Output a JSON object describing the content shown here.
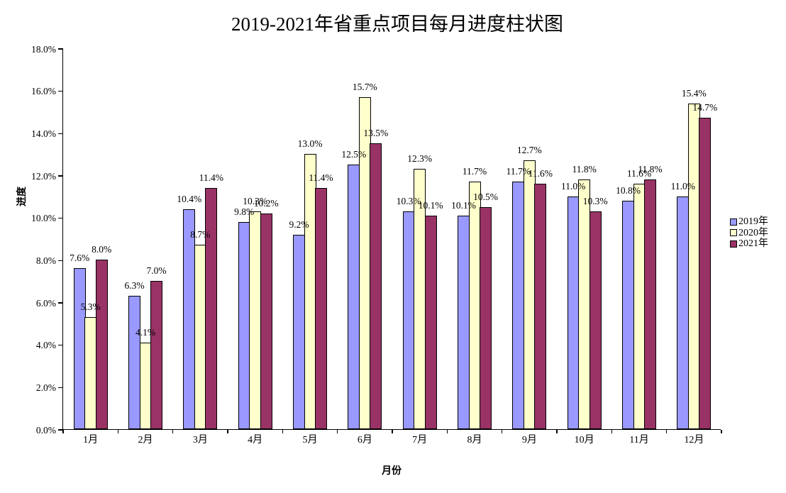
{
  "chart_data": {
    "type": "bar",
    "title": "2019-2021年省重点项目每月进度柱状图",
    "xlabel": "月份",
    "ylabel": "进度",
    "categories": [
      "1月",
      "2月",
      "3月",
      "4月",
      "5月",
      "6月",
      "7月",
      "8月",
      "9月",
      "10月",
      "11月",
      "12月"
    ],
    "series": [
      {
        "name": "2019年",
        "color": "#9999FF",
        "values": [
          7.6,
          6.3,
          10.4,
          9.8,
          9.2,
          12.5,
          10.3,
          10.1,
          11.7,
          11.0,
          10.8,
          11.0
        ]
      },
      {
        "name": "2020年",
        "color": "#FFFFCC",
        "values": [
          5.3,
          4.1,
          8.7,
          10.3,
          13.0,
          15.7,
          12.3,
          11.7,
          12.7,
          11.8,
          11.6,
          15.4
        ]
      },
      {
        "name": "2021年",
        "color": "#993366",
        "values": [
          8.0,
          7.0,
          11.4,
          10.2,
          11.4,
          13.5,
          10.1,
          10.5,
          11.6,
          10.3,
          11.8,
          14.7
        ]
      }
    ],
    "ylim": [
      0,
      18
    ],
    "ytick_step": 2,
    "ytick_labels": [
      "18.0%",
      "16.0%",
      "14.0%",
      "12.0%",
      "10.0%",
      "8.0%",
      "6.0%",
      "4.0%",
      "2.0%",
      "0.0%"
    ],
    "data_label_format": "0.0%",
    "grid": false,
    "legend_position": "middle-right",
    "bar_border_color": "#000000",
    "axis_color": "#000000",
    "text_color": "#000000",
    "background_color": "#FFFFFF"
  }
}
